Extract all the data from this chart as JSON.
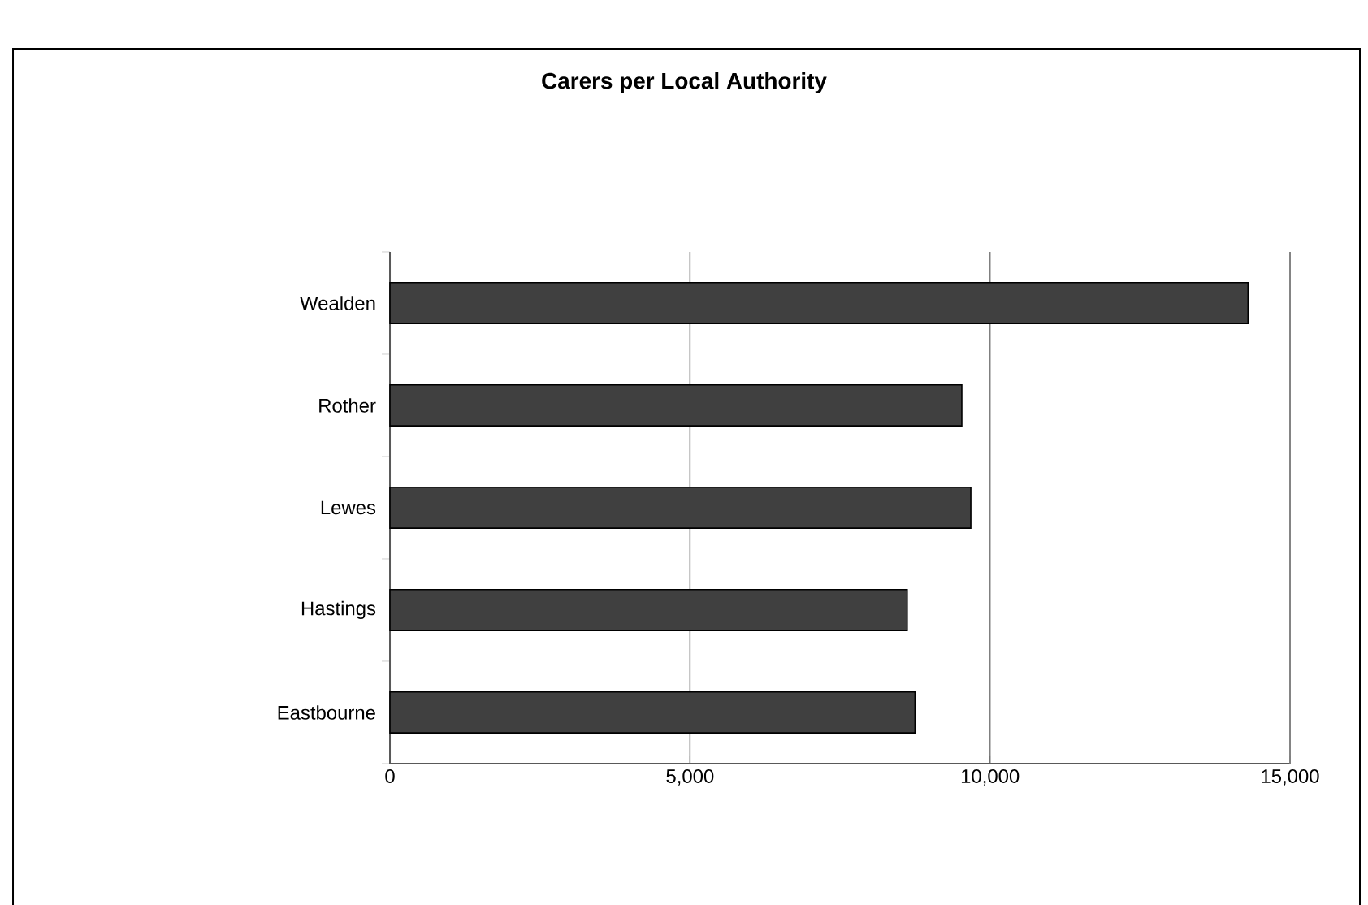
{
  "chart_data": {
    "type": "bar",
    "orientation": "horizontal",
    "title": "Carers per Local Authority",
    "categories": [
      "Wealden",
      "Rother",
      "Lewes",
      "Hastings",
      "Eastbourne"
    ],
    "values": [
      14300,
      9530,
      9680,
      8620,
      8750
    ],
    "color": "#404040",
    "xlim": [
      0,
      15000
    ],
    "xticks": [
      0,
      {
        "value": 5000,
        "label": "5,000"
      },
      {
        "value": 10000,
        "label": "10,000"
      },
      {
        "value": 15000,
        "label": "15,000"
      }
    ],
    "grid": "x"
  }
}
